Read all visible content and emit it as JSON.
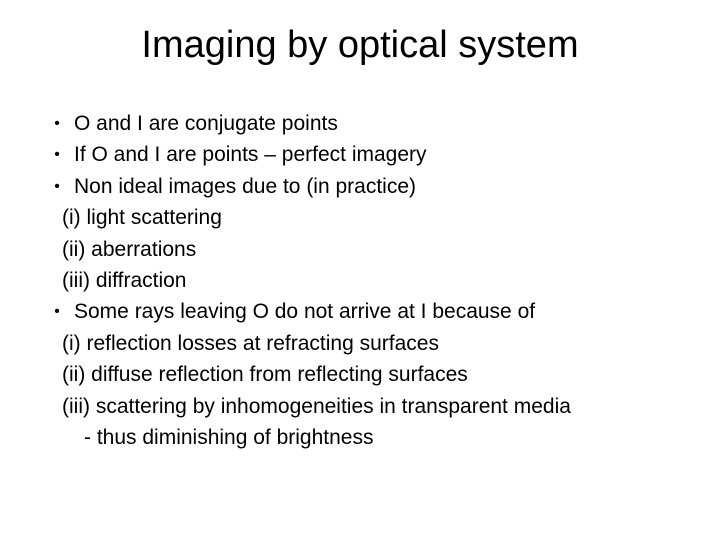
{
  "slide": {
    "title": "Imaging by optical system",
    "bullets": {
      "b1": "O and I are conjugate points",
      "b2": "If O and I are points – perfect imagery",
      "b3": "Non ideal images due to (in practice)",
      "b3_i": "(i) light scattering",
      "b3_ii": "(ii) aberrations",
      "b3_iii": "(iii) diffraction",
      "b4": "Some rays leaving O do not arrive at I because of",
      "b4_i": "(i) reflection losses at refracting surfaces",
      "b4_ii": "(ii) diffuse reflection from reflecting surfaces",
      "b4_iii": "(iii) scattering by inhomogeneities in transparent media",
      "b4_conc": "- thus diminishing of brightness"
    }
  },
  "style": {
    "background_color": "#ffffff",
    "text_color": "#000000",
    "title_fontsize": 38,
    "body_fontsize": 21,
    "font_family": "Arial"
  }
}
